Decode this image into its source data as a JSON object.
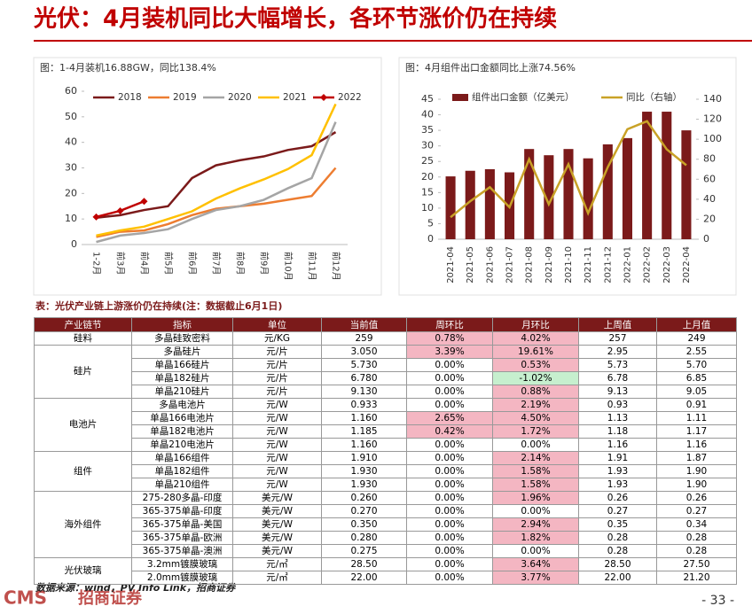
{
  "header": {
    "title": "光伏：4月装机同比大幅增长，各环节涨价仍在持续"
  },
  "chart_data": [
    {
      "type": "line",
      "title": "图：1-4月装机16.88GW，同比138.4%",
      "categories": [
        "1-2月",
        "前3月",
        "前4月",
        "前5月",
        "前6月",
        "前7月",
        "前8月",
        "前9月",
        "前10月",
        "前11月",
        "前12月"
      ],
      "series": [
        {
          "name": "2018",
          "color": "#7b1a1a",
          "values": [
            10.5,
            11.5,
            13.5,
            15,
            26,
            31,
            33,
            34.5,
            37,
            38.5,
            44
          ]
        },
        {
          "name": "2019",
          "color": "#ed7d31",
          "values": [
            3,
            5,
            5.5,
            8,
            11.5,
            14,
            15,
            16,
            17.5,
            19,
            30
          ]
        },
        {
          "name": "2020",
          "color": "#a5a5a5",
          "values": [
            1,
            3.5,
            4.5,
            6,
            10,
            13.5,
            15,
            17.5,
            22,
            26,
            48
          ]
        },
        {
          "name": "2021",
          "color": "#ffc000",
          "values": [
            3.5,
            5.5,
            7,
            10,
            13,
            18,
            22,
            25.5,
            29.5,
            35,
            55
          ]
        },
        {
          "name": "2022",
          "color": "#c00000",
          "marker": "diamond",
          "values": [
            10.8,
            13.2,
            16.9,
            null,
            null,
            null,
            null,
            null,
            null,
            null,
            null
          ]
        }
      ],
      "ylim": [
        0,
        60
      ],
      "yticks": [
        0,
        10,
        20,
        30,
        40,
        50,
        60
      ]
    },
    {
      "type": "bar",
      "title": "图：4月组件出口金额同比上涨74.56%",
      "categories": [
        "2021-04",
        "2021-05",
        "2021-06",
        "2021-07",
        "2021-08",
        "2021-09",
        "2021-10",
        "2021-11",
        "2021-12",
        "2022-01",
        "2022-02",
        "2022-03",
        "2022-04"
      ],
      "series": [
        {
          "name": "组件出口金额（亿美元）",
          "color": "#7b1a1a",
          "values": [
            20.2,
            22,
            22.5,
            21.5,
            29,
            27,
            29,
            26,
            30.5,
            32.5,
            41,
            41,
            35
          ]
        },
        {
          "name": "同比（右轴）",
          "color": "#c9a227",
          "type": "line",
          "axis": "y2",
          "values": [
            22,
            38,
            52,
            32,
            80,
            35,
            75,
            26,
            72,
            110,
            118,
            90,
            74
          ]
        }
      ],
      "ylim": [
        0,
        45
      ],
      "yticks": [
        0,
        5,
        10,
        15,
        20,
        25,
        30,
        35,
        40,
        45
      ],
      "y2lim": [
        0,
        140
      ],
      "y2ticks": [
        0,
        20,
        40,
        60,
        80,
        100,
        120,
        140
      ]
    }
  ],
  "table": {
    "caption": "表：光伏产业链上游涨价仍在持续(注：数据截止6月1日)",
    "columns": [
      "产业链节",
      "指标",
      "单位",
      "当前值",
      "周环比",
      "月环比",
      "上周值",
      "上月值"
    ],
    "header_color": "#7b1a1a",
    "groups": [
      {
        "name": "硅料",
        "rows": [
          {
            "cells": [
              "多晶硅致密料",
              "元/KG",
              "259",
              "0.78%",
              "4.02%",
              "257",
              "249"
            ],
            "fills": {
              "3": "#f4b6c2",
              "4": "#f4b6c2"
            }
          }
        ]
      },
      {
        "name": "硅片",
        "rows": [
          {
            "cells": [
              "多晶硅片",
              "元/片",
              "3.050",
              "3.39%",
              "19.61%",
              "2.95",
              "2.55"
            ],
            "fills": {
              "3": "#f4b6c2",
              "4": "#f4b6c2"
            }
          },
          {
            "cells": [
              "单晶166硅片",
              "元/片",
              "5.730",
              "0.00%",
              "0.53%",
              "5.73",
              "5.70"
            ],
            "fills": {
              "4": "#f4b6c2"
            }
          },
          {
            "cells": [
              "单晶182硅片",
              "元/片",
              "6.780",
              "0.00%",
              "-1.02%",
              "6.78",
              "6.85"
            ],
            "fills": {
              "4": "#c6efce"
            }
          },
          {
            "cells": [
              "单晶210硅片",
              "元/片",
              "9.130",
              "0.00%",
              "0.88%",
              "9.13",
              "9.05"
            ],
            "fills": {
              "4": "#f4b6c2"
            }
          }
        ]
      },
      {
        "name": "电池片",
        "rows": [
          {
            "cells": [
              "多晶电池片",
              "元/W",
              "0.933",
              "0.00%",
              "2.19%",
              "0.93",
              "0.91"
            ],
            "fills": {
              "4": "#f4b6c2"
            }
          },
          {
            "cells": [
              "单晶166电池片",
              "元/W",
              "1.160",
              "2.65%",
              "4.50%",
              "1.13",
              "1.11"
            ],
            "fills": {
              "3": "#f4b6c2",
              "4": "#f4b6c2"
            }
          },
          {
            "cells": [
              "单晶182电池片",
              "元/W",
              "1.185",
              "0.42%",
              "1.72%",
              "1.18",
              "1.17"
            ],
            "fills": {
              "3": "#f4b6c2",
              "4": "#f4b6c2"
            }
          },
          {
            "cells": [
              "单晶210电池片",
              "元/W",
              "1.160",
              "0.00%",
              "0.00%",
              "1.16",
              "1.16"
            ],
            "fills": {}
          }
        ]
      },
      {
        "name": "组件",
        "rows": [
          {
            "cells": [
              "单晶166组件",
              "元/W",
              "1.910",
              "0.00%",
              "2.14%",
              "1.91",
              "1.87"
            ],
            "fills": {
              "4": "#f4b6c2"
            }
          },
          {
            "cells": [
              "单晶182组件",
              "元/W",
              "1.930",
              "0.00%",
              "1.58%",
              "1.93",
              "1.90"
            ],
            "fills": {
              "4": "#f4b6c2"
            }
          },
          {
            "cells": [
              "单晶210组件",
              "元/W",
              "1.930",
              "0.00%",
              "1.58%",
              "1.93",
              "1.90"
            ],
            "fills": {
              "4": "#f4b6c2"
            }
          }
        ]
      },
      {
        "name": "海外组件",
        "rows": [
          {
            "cells": [
              "275-280多晶-印度",
              "美元/W",
              "0.260",
              "0.00%",
              "1.96%",
              "0.26",
              "0.26"
            ],
            "fills": {
              "4": "#f4b6c2"
            }
          },
          {
            "cells": [
              "365-375单晶-印度",
              "美元/W",
              "0.270",
              "0.00%",
              "0.00%",
              "0.27",
              "0.27"
            ],
            "fills": {}
          },
          {
            "cells": [
              "365-375单晶-美国",
              "美元/W",
              "0.350",
              "0.00%",
              "2.94%",
              "0.35",
              "0.34"
            ],
            "fills": {
              "4": "#f4b6c2"
            }
          },
          {
            "cells": [
              "365-375单晶-欧洲",
              "美元/W",
              "0.280",
              "0.00%",
              "1.82%",
              "0.28",
              "0.28"
            ],
            "fills": {
              "4": "#f4b6c2"
            }
          },
          {
            "cells": [
              "365-375单晶-澳洲",
              "美元/W",
              "0.275",
              "0.00%",
              "0.00%",
              "0.28",
              "0.28"
            ],
            "fills": {}
          }
        ]
      },
      {
        "name": "光伏玻璃",
        "rows": [
          {
            "cells": [
              "3.2mm镀膜玻璃",
              "元/㎡",
              "28.50",
              "0.00%",
              "3.64%",
              "28.50",
              "27.50"
            ],
            "fills": {
              "4": "#f4b6c2"
            }
          },
          {
            "cells": [
              "2.0mm镀膜玻璃",
              "元/㎡",
              "22.00",
              "0.00%",
              "3.77%",
              "22.00",
              "21.20"
            ],
            "fills": {
              "4": "#f4b6c2"
            }
          }
        ]
      }
    ]
  },
  "footer": {
    "logo": "CMS",
    "logo_cn": "招商证券",
    "source": "数据来源：wind，PV Info Link，招商证券",
    "page": "- 33 -"
  }
}
